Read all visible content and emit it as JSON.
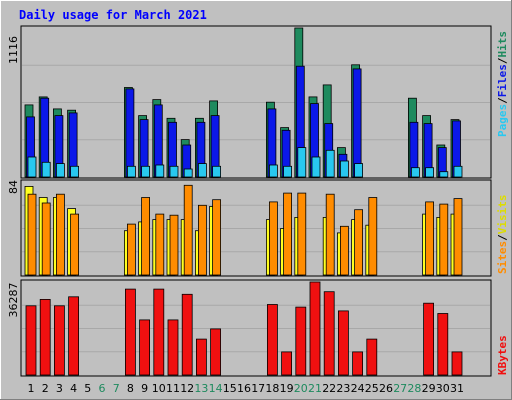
{
  "chart_data": [
    {
      "type": "bar",
      "title": "Daily usage for March 2021",
      "panel": "hits-files-pages",
      "ymax_label": "1116",
      "ylim": [
        0,
        1116
      ],
      "legend": [
        "Pages",
        "/",
        "Files",
        "/",
        "Hits"
      ],
      "colors": {
        "hits": "#1e8a5e",
        "files": "#0b18e8",
        "pages": "#28c8f0"
      },
      "categories": [
        "1",
        "2",
        "3",
        "4",
        "5",
        "6",
        "7",
        "8",
        "9",
        "10",
        "11",
        "12",
        "13",
        "14",
        "15",
        "16",
        "17",
        "18",
        "19",
        "20",
        "21",
        "22",
        "23",
        "24",
        "25",
        "26",
        "27",
        "28",
        "29",
        "30",
        "31"
      ],
      "weekend_days": [
        "6",
        "7",
        "13",
        "14",
        "20",
        "21",
        "27",
        "28"
      ],
      "series": [
        {
          "name": "Hits",
          "values": [
            540,
            600,
            510,
            500,
            0,
            0,
            0,
            670,
            460,
            580,
            440,
            280,
            440,
            570,
            0,
            0,
            0,
            560,
            370,
            1116,
            600,
            690,
            220,
            840,
            0,
            0,
            0,
            590,
            460,
            240,
            430
          ]
        },
        {
          "name": "Files",
          "values": [
            450,
            590,
            460,
            480,
            0,
            0,
            0,
            660,
            430,
            540,
            410,
            240,
            410,
            460,
            0,
            0,
            0,
            510,
            350,
            830,
            550,
            400,
            170,
            810,
            0,
            0,
            0,
            410,
            400,
            220,
            420
          ]
        },
        {
          "name": "Pages",
          "values": [
            150,
            110,
            100,
            80,
            0,
            0,
            0,
            80,
            80,
            90,
            80,
            60,
            100,
            80,
            0,
            0,
            0,
            90,
            80,
            220,
            150,
            200,
            120,
            100,
            0,
            0,
            0,
            70,
            70,
            40,
            80
          ]
        }
      ]
    },
    {
      "type": "bar",
      "panel": "visits-sites",
      "ymax_label": "84",
      "ylim": [
        0,
        84
      ],
      "legend": [
        "Sites",
        "/",
        "Visits"
      ],
      "colors": {
        "visits": "#ff8c00",
        "sites": "#ffff20"
      },
      "categories": [
        "1",
        "2",
        "3",
        "4",
        "5",
        "6",
        "7",
        "8",
        "9",
        "10",
        "11",
        "12",
        "13",
        "14",
        "15",
        "16",
        "17",
        "18",
        "19",
        "20",
        "21",
        "22",
        "23",
        "24",
        "25",
        "26",
        "27",
        "28",
        "29",
        "30",
        "31"
      ],
      "series": [
        {
          "name": "Visits",
          "values": [
            73,
            65,
            73,
            55,
            0,
            0,
            0,
            46,
            70,
            55,
            54,
            81,
            63,
            68,
            0,
            0,
            0,
            66,
            74,
            74,
            0,
            73,
            44,
            59,
            70,
            0,
            0,
            0,
            66,
            64,
            69
          ]
        },
        {
          "name": "Sites",
          "values": [
            80,
            70,
            70,
            60,
            0,
            0,
            0,
            40,
            48,
            50,
            50,
            50,
            40,
            62,
            0,
            0,
            0,
            50,
            42,
            52,
            0,
            52,
            38,
            50,
            45,
            0,
            0,
            0,
            55,
            52,
            55
          ]
        }
      ]
    },
    {
      "type": "bar",
      "panel": "kbytes",
      "ymax_label": "36287",
      "ylim": [
        0,
        36287
      ],
      "legend": [
        "KBytes"
      ],
      "colors": {
        "kbytes": "#f01010"
      },
      "categories": [
        "1",
        "2",
        "3",
        "4",
        "5",
        "6",
        "7",
        "8",
        "9",
        "10",
        "11",
        "12",
        "13",
        "14",
        "15",
        "16",
        "17",
        "18",
        "19",
        "20",
        "21",
        "22",
        "23",
        "24",
        "25",
        "26",
        "27",
        "28",
        "29",
        "30",
        "31"
      ],
      "series": [
        {
          "name": "KBytes",
          "values": [
            27000,
            29500,
            27000,
            30500,
            0,
            0,
            0,
            33500,
            21500,
            33500,
            21500,
            31500,
            14000,
            18000,
            0,
            0,
            0,
            27500,
            9000,
            26500,
            37000,
            32500,
            25000,
            9000,
            14000,
            0,
            0,
            0,
            28000,
            24000,
            9000
          ]
        }
      ]
    }
  ]
}
